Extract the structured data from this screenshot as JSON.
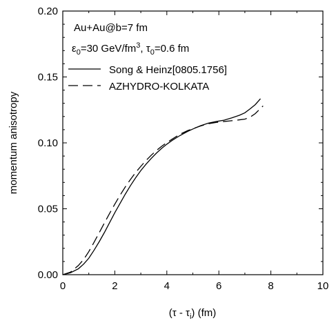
{
  "chart_data": {
    "type": "line",
    "xlim": [
      0,
      10
    ],
    "ylim": [
      0,
      0.2
    ],
    "x_ticks": [
      "0",
      "2",
      "4",
      "6",
      "8",
      "10"
    ],
    "y_ticks": [
      "0.00",
      "0.05",
      "0.10",
      "0.15",
      "0.20"
    ],
    "xlabel": {
      "main": "(τ - τ",
      "sub": "i",
      "tail": ") (fm)"
    },
    "ylabel": "momentum anisotropy",
    "annotations": {
      "line1": "Au+Au@b=7 fm",
      "line2": {
        "eps": "ε",
        "eps_sub": "0",
        "eq1": "=30 GeV/fm",
        "sup": "3",
        "comma": ", ",
        "tau": "τ",
        "tau_sub": "0",
        "eq2": "=0.6 fm"
      }
    },
    "legend": {
      "placement": "top-left"
    },
    "series": [
      {
        "name": "Song & Heinz[0805.1756]",
        "style": "solid",
        "x": [
          0,
          0.3,
          0.6,
          0.8,
          1.0,
          1.2,
          1.4,
          1.6,
          1.8,
          2.0,
          2.2,
          2.4,
          2.6,
          2.8,
          3.0,
          3.2,
          3.4,
          3.6,
          3.8,
          4.0,
          4.2,
          4.5,
          4.8,
          5.0,
          5.3,
          5.6,
          5.9,
          6.2,
          6.5,
          6.8,
          7.0,
          7.2,
          7.4,
          7.6
        ],
        "y": [
          0,
          0.0015,
          0.0045,
          0.008,
          0.0125,
          0.0185,
          0.025,
          0.032,
          0.0395,
          0.047,
          0.054,
          0.061,
          0.0675,
          0.0735,
          0.079,
          0.0838,
          0.0882,
          0.0922,
          0.0958,
          0.099,
          0.1018,
          0.1055,
          0.1087,
          0.1105,
          0.113,
          0.115,
          0.1162,
          0.1172,
          0.119,
          0.121,
          0.1228,
          0.1258,
          0.129,
          0.1335
        ]
      },
      {
        "name": "AZHYDRO-KOLKATA",
        "style": "dashed",
        "x": [
          0,
          0.3,
          0.6,
          0.8,
          1.0,
          1.2,
          1.4,
          1.6,
          1.8,
          2.0,
          2.2,
          2.4,
          2.6,
          2.8,
          3.0,
          3.2,
          3.4,
          3.6,
          3.8,
          4.0,
          4.2,
          4.5,
          4.8,
          5.0,
          5.3,
          5.6,
          5.9,
          6.2,
          6.5,
          6.8,
          7.0,
          7.2,
          7.4,
          7.7
        ],
        "y": [
          0,
          0.002,
          0.007,
          0.0115,
          0.0175,
          0.0245,
          0.0318,
          0.0392,
          0.0465,
          0.0535,
          0.0602,
          0.0665,
          0.0722,
          0.0775,
          0.0822,
          0.0866,
          0.0906,
          0.0942,
          0.0974,
          0.1002,
          0.1028,
          0.1065,
          0.1093,
          0.1108,
          0.1128,
          0.1145,
          0.1155,
          0.1162,
          0.1168,
          0.1175,
          0.118,
          0.1195,
          0.1222,
          0.128
        ]
      }
    ]
  }
}
